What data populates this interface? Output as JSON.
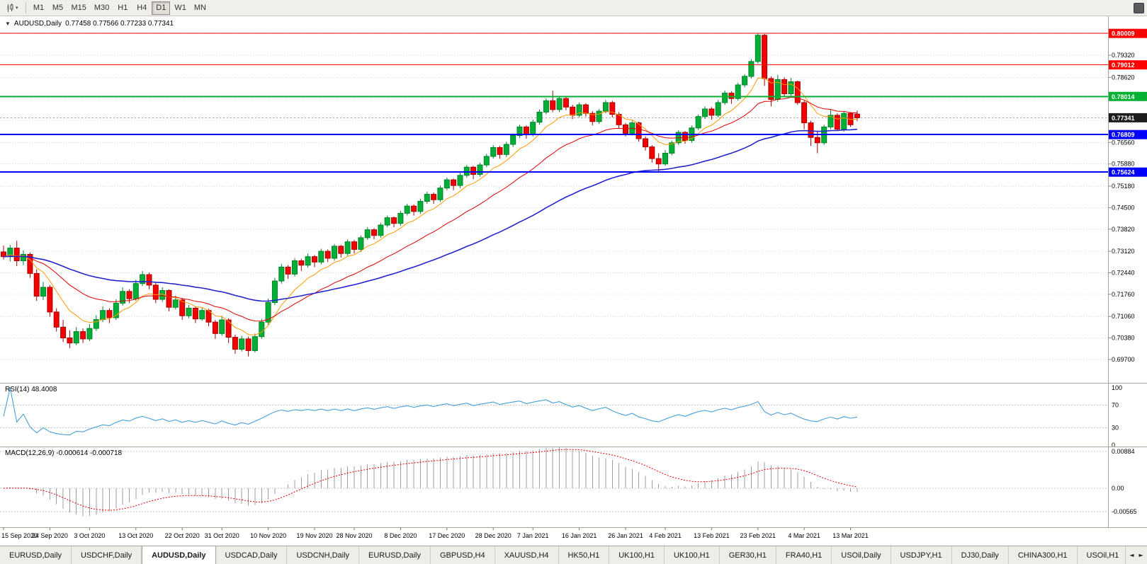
{
  "icons": {
    "caret_down": "▾",
    "tabs_scroll_left": "◄",
    "tabs_scroll_right": "►"
  },
  "toolbar": {
    "timeframes": [
      "M1",
      "M5",
      "M15",
      "M30",
      "H1",
      "H4",
      "D1",
      "W1",
      "MN"
    ],
    "active_timeframe": "D1"
  },
  "main_chart": {
    "title_marker": "▼",
    "title": "AUDUSD,Daily",
    "ohlc": "0.77458 0.77566 0.77233 0.77341",
    "colors": {
      "grid": "#D8D8D8",
      "bull": "#00B036",
      "bull_border": "#00822A",
      "bear": "#F40000",
      "bear_border": "#A60000",
      "current_tag": "#1C1C1C"
    }
  },
  "rsi_panel": {
    "label": "RSI(14) 48.4008",
    "levels": [
      100,
      70,
      30,
      0
    ],
    "line_color": "#47A0DB"
  },
  "macd_panel": {
    "label": "MACD(12,26,9) -0.000614 -0.000718",
    "histogram_color": "#9C9C9C",
    "signal_color": "#E00000"
  },
  "tabs": {
    "active_index": 2,
    "items": [
      "EURUSD,Daily",
      "USDCHF,Daily",
      "AUDUSD,Daily",
      "USDCAD,Daily",
      "USDCNH,Daily",
      "EURUSD,Daily",
      "GBPUSD,H4",
      "XAUUSD,H4",
      "HK50,H1",
      "UK100,H1",
      "UK100,H1",
      "GER30,H1",
      "FRA40,H1",
      "USOil,Daily",
      "USDJPY,H1",
      "DJ30,Daily",
      "CHINA300,H1",
      "USOil,H1"
    ]
  },
  "chart_data": {
    "type": "candlestick",
    "symbol": "AUDUSD",
    "timeframe": "Daily",
    "current_price": 0.77341,
    "current_price_label": "0.77341",
    "price_axis": {
      "min": 0.6896,
      "max": 0.8055,
      "gridlines": [
        {
          "price": 0.8,
          "label": ""
        },
        {
          "price": 0.7932,
          "label": "0.79320"
        },
        {
          "price": 0.7862,
          "label": "0.78620"
        },
        {
          "price": 0.7794,
          "label": ""
        },
        {
          "price": 0.7726,
          "label": ""
        },
        {
          "price": 0.7656,
          "label": "0.76560"
        },
        {
          "price": 0.7588,
          "label": "0.75880"
        },
        {
          "price": 0.7518,
          "label": "0.75180"
        },
        {
          "price": 0.745,
          "label": "0.74500"
        },
        {
          "price": 0.7382,
          "label": "0.73820"
        },
        {
          "price": 0.7312,
          "label": "0.73120"
        },
        {
          "price": 0.7244,
          "label": "0.72440"
        },
        {
          "price": 0.7176,
          "label": "0.71760"
        },
        {
          "price": 0.7106,
          "label": "0.71060"
        },
        {
          "price": 0.7038,
          "label": "0.70380"
        },
        {
          "price": 0.697,
          "label": "0.69700"
        }
      ]
    },
    "horizontal_levels": [
      {
        "price": 0.80009,
        "label": "0.80009",
        "color": "#FF0000",
        "width": 1
      },
      {
        "price": 0.79012,
        "label": "0.79012",
        "color": "#FF0000",
        "width": 1
      },
      {
        "price": 0.78014,
        "label": "0.78014",
        "color": "#00B232",
        "width": 2
      },
      {
        "price": 0.76809,
        "label": "0.76809",
        "color": "#0000FF",
        "width": 2
      },
      {
        "price": 0.75624,
        "label": "0.75624",
        "color": "#0000FF",
        "width": 2
      }
    ],
    "moving_averages": [
      {
        "name": "fast",
        "type": "ema",
        "period": 8,
        "color": "#FF9900",
        "width": 1
      },
      {
        "name": "mid",
        "type": "ema",
        "period": 21,
        "color": "#E00000",
        "width": 1
      },
      {
        "name": "slow",
        "type": "ema",
        "period": 55,
        "color": "#2424CC",
        "width": 1.6
      }
    ],
    "rsi": {
      "period": 14,
      "value": 48.4008
    },
    "macd": {
      "fast": 12,
      "slow": 26,
      "signal": 9,
      "macd_value": -0.000614,
      "signal_value": -0.000718,
      "axis": [
        {
          "value": 0.00884,
          "label": "0.00884"
        },
        {
          "value": 0,
          "label": "0.00"
        },
        {
          "value": -0.00565,
          "label": "-0.00565"
        }
      ]
    },
    "date_labels": [
      {
        "text": "15 Sep 2020",
        "index": 0
      },
      {
        "text": "24 Sep 2020",
        "index": 7
      },
      {
        "text": "3 Oct 2020",
        "index": 13
      },
      {
        "text": "13 Oct 2020",
        "index": 20
      },
      {
        "text": "22 Oct 2020",
        "index": 27
      },
      {
        "text": "31 Oct 2020",
        "index": 33
      },
      {
        "text": "10 Nov 2020",
        "index": 40
      },
      {
        "text": "19 Nov 2020",
        "index": 47
      },
      {
        "text": "28 Nov 2020",
        "index": 53
      },
      {
        "text": "8 Dec 2020",
        "index": 60
      },
      {
        "text": "17 Dec 2020",
        "index": 67
      },
      {
        "text": "28 Dec 2020",
        "index": 74
      },
      {
        "text": "7 Jan 2021",
        "index": 80
      },
      {
        "text": "16 Jan 2021",
        "index": 87
      },
      {
        "text": "26 Jan 2021",
        "index": 94
      },
      {
        "text": "4 Feb 2021",
        "index": 100
      },
      {
        "text": "13 Feb 2021",
        "index": 107
      },
      {
        "text": "23 Feb 2021",
        "index": 114
      },
      {
        "text": "4 Mar 2021",
        "index": 121
      },
      {
        "text": "13 Mar 2021",
        "index": 128
      }
    ],
    "candles": [
      [
        0.731,
        0.733,
        0.7286,
        0.7295
      ],
      [
        0.7295,
        0.7332,
        0.728,
        0.7322
      ],
      [
        0.7322,
        0.7345,
        0.7265,
        0.7282
      ],
      [
        0.7282,
        0.7315,
        0.7268,
        0.7302
      ],
      [
        0.7302,
        0.7308,
        0.7228,
        0.7242
      ],
      [
        0.7242,
        0.7255,
        0.7155,
        0.717
      ],
      [
        0.717,
        0.7215,
        0.7158,
        0.7198
      ],
      [
        0.7198,
        0.7205,
        0.7105,
        0.712
      ],
      [
        0.712,
        0.7132,
        0.7058,
        0.7072
      ],
      [
        0.7072,
        0.7095,
        0.7025,
        0.7038
      ],
      [
        0.7038,
        0.7062,
        0.7006,
        0.7022
      ],
      [
        0.7022,
        0.7072,
        0.7015,
        0.7058
      ],
      [
        0.7058,
        0.7068,
        0.7022,
        0.7035
      ],
      [
        0.7035,
        0.7082,
        0.7028,
        0.7068
      ],
      [
        0.7068,
        0.711,
        0.706,
        0.7096
      ],
      [
        0.7096,
        0.7138,
        0.7088,
        0.7125
      ],
      [
        0.7125,
        0.7132,
        0.7085,
        0.7102
      ],
      [
        0.7102,
        0.716,
        0.7095,
        0.7148
      ],
      [
        0.7148,
        0.7198,
        0.714,
        0.7185
      ],
      [
        0.7185,
        0.7192,
        0.7148,
        0.7162
      ],
      [
        0.7162,
        0.7222,
        0.7155,
        0.721
      ],
      [
        0.721,
        0.725,
        0.7202,
        0.7238
      ],
      [
        0.7238,
        0.7245,
        0.7192,
        0.7205
      ],
      [
        0.7205,
        0.7212,
        0.7148,
        0.716
      ],
      [
        0.716,
        0.7198,
        0.7152,
        0.7188
      ],
      [
        0.7188,
        0.7192,
        0.7122,
        0.7135
      ],
      [
        0.7135,
        0.7172,
        0.7128,
        0.7158
      ],
      [
        0.7158,
        0.7165,
        0.7095,
        0.7108
      ],
      [
        0.7108,
        0.7142,
        0.71,
        0.7132
      ],
      [
        0.7132,
        0.7138,
        0.7085,
        0.7098
      ],
      [
        0.7098,
        0.7135,
        0.7092,
        0.7125
      ],
      [
        0.7125,
        0.713,
        0.7075,
        0.7088
      ],
      [
        0.7088,
        0.7095,
        0.7035,
        0.7052
      ],
      [
        0.7052,
        0.7108,
        0.7045,
        0.7095
      ],
      [
        0.7095,
        0.71,
        0.7022,
        0.704
      ],
      [
        0.704,
        0.7048,
        0.6988,
        0.7002
      ],
      [
        0.7002,
        0.7045,
        0.6995,
        0.7035
      ],
      [
        0.7035,
        0.7042,
        0.698,
        0.6998
      ],
      [
        0.6998,
        0.7052,
        0.6992,
        0.7042
      ],
      [
        0.7042,
        0.7098,
        0.7035,
        0.7088
      ],
      [
        0.7088,
        0.7162,
        0.708,
        0.715
      ],
      [
        0.715,
        0.7228,
        0.7142,
        0.7218
      ],
      [
        0.7218,
        0.7272,
        0.721,
        0.7262
      ],
      [
        0.7262,
        0.7268,
        0.7225,
        0.724
      ],
      [
        0.724,
        0.729,
        0.7232,
        0.7282
      ],
      [
        0.7282,
        0.7288,
        0.725,
        0.7268
      ],
      [
        0.7268,
        0.7305,
        0.726,
        0.7295
      ],
      [
        0.7295,
        0.73,
        0.7262,
        0.7278
      ],
      [
        0.7278,
        0.732,
        0.727,
        0.7312
      ],
      [
        0.7312,
        0.7318,
        0.7278,
        0.729
      ],
      [
        0.729,
        0.7335,
        0.7282,
        0.7328
      ],
      [
        0.7328,
        0.7332,
        0.7292,
        0.7305
      ],
      [
        0.7305,
        0.735,
        0.7298,
        0.7342
      ],
      [
        0.7342,
        0.7348,
        0.7305,
        0.7318
      ],
      [
        0.7318,
        0.7362,
        0.731,
        0.7355
      ],
      [
        0.7355,
        0.7388,
        0.7348,
        0.738
      ],
      [
        0.738,
        0.7385,
        0.735,
        0.7362
      ],
      [
        0.7362,
        0.7402,
        0.7355,
        0.7395
      ],
      [
        0.7395,
        0.7425,
        0.7388,
        0.7418
      ],
      [
        0.7418,
        0.7422,
        0.7388,
        0.74
      ],
      [
        0.74,
        0.744,
        0.7392,
        0.7432
      ],
      [
        0.7432,
        0.7462,
        0.7425,
        0.7455
      ],
      [
        0.7455,
        0.746,
        0.7425,
        0.7438
      ],
      [
        0.7438,
        0.7478,
        0.743,
        0.747
      ],
      [
        0.747,
        0.75,
        0.7462,
        0.7492
      ],
      [
        0.7492,
        0.7498,
        0.7462,
        0.7475
      ],
      [
        0.7475,
        0.752,
        0.7468,
        0.7512
      ],
      [
        0.7512,
        0.7545,
        0.7505,
        0.7538
      ],
      [
        0.7538,
        0.7542,
        0.7505,
        0.752
      ],
      [
        0.752,
        0.756,
        0.7512,
        0.7552
      ],
      [
        0.7552,
        0.7585,
        0.7545,
        0.7578
      ],
      [
        0.7578,
        0.7582,
        0.754,
        0.7555
      ],
      [
        0.7555,
        0.7592,
        0.7548,
        0.7585
      ],
      [
        0.7585,
        0.762,
        0.7578,
        0.7612
      ],
      [
        0.7612,
        0.7648,
        0.7605,
        0.764
      ],
      [
        0.764,
        0.7645,
        0.7605,
        0.7618
      ],
      [
        0.7618,
        0.7658,
        0.761,
        0.765
      ],
      [
        0.765,
        0.7685,
        0.7642,
        0.7678
      ],
      [
        0.7678,
        0.7712,
        0.767,
        0.7705
      ],
      [
        0.7705,
        0.771,
        0.7668,
        0.7682
      ],
      [
        0.7682,
        0.7728,
        0.7675,
        0.772
      ],
      [
        0.772,
        0.776,
        0.7712,
        0.7752
      ],
      [
        0.7752,
        0.7795,
        0.7745,
        0.7788
      ],
      [
        0.7788,
        0.782,
        0.7752,
        0.776
      ],
      [
        0.776,
        0.78,
        0.7752,
        0.7795
      ],
      [
        0.7795,
        0.78,
        0.7758,
        0.7768
      ],
      [
        0.7768,
        0.7775,
        0.773,
        0.7742
      ],
      [
        0.7742,
        0.7782,
        0.7735,
        0.7775
      ],
      [
        0.7775,
        0.778,
        0.7738,
        0.7748
      ],
      [
        0.7748,
        0.7755,
        0.771,
        0.7722
      ],
      [
        0.7722,
        0.7762,
        0.7715,
        0.7755
      ],
      [
        0.7755,
        0.779,
        0.7748,
        0.7782
      ],
      [
        0.7782,
        0.7788,
        0.7735,
        0.7745
      ],
      [
        0.7745,
        0.7752,
        0.77,
        0.7712
      ],
      [
        0.7712,
        0.7718,
        0.7675,
        0.7685
      ],
      [
        0.7685,
        0.7725,
        0.7678,
        0.7718
      ],
      [
        0.7718,
        0.7722,
        0.7658,
        0.7668
      ],
      [
        0.7668,
        0.7675,
        0.763,
        0.7642
      ],
      [
        0.7642,
        0.7648,
        0.7592,
        0.7605
      ],
      [
        0.7605,
        0.7622,
        0.7565,
        0.7588
      ],
      [
        0.7588,
        0.7632,
        0.7582,
        0.7622
      ],
      [
        0.7622,
        0.7662,
        0.7615,
        0.7655
      ],
      [
        0.7655,
        0.7695,
        0.7648,
        0.7688
      ],
      [
        0.7688,
        0.7692,
        0.7652,
        0.7662
      ],
      [
        0.7662,
        0.771,
        0.7655,
        0.7702
      ],
      [
        0.7702,
        0.7745,
        0.7695,
        0.7738
      ],
      [
        0.7738,
        0.777,
        0.773,
        0.7762
      ],
      [
        0.7762,
        0.7768,
        0.7728,
        0.7742
      ],
      [
        0.7742,
        0.779,
        0.7735,
        0.7782
      ],
      [
        0.7782,
        0.782,
        0.7775,
        0.7812
      ],
      [
        0.7812,
        0.7818,
        0.7778,
        0.7795
      ],
      [
        0.7795,
        0.7845,
        0.7788,
        0.7838
      ],
      [
        0.7838,
        0.7872,
        0.783,
        0.7865
      ],
      [
        0.7865,
        0.792,
        0.7858,
        0.7912
      ],
      [
        0.7912,
        0.80009,
        0.7905,
        0.7995
      ],
      [
        0.7995,
        0.7999,
        0.7835,
        0.7858
      ],
      [
        0.7858,
        0.7865,
        0.777,
        0.7792
      ],
      [
        0.7792,
        0.787,
        0.7785,
        0.7855
      ],
      [
        0.7855,
        0.7862,
        0.78,
        0.781
      ],
      [
        0.781,
        0.786,
        0.7802,
        0.7848
      ],
      [
        0.7848,
        0.7852,
        0.7775,
        0.7782
      ],
      [
        0.7782,
        0.7788,
        0.7698,
        0.7718
      ],
      [
        0.7718,
        0.7725,
        0.7645,
        0.7672
      ],
      [
        0.7672,
        0.769,
        0.7622,
        0.7655
      ],
      [
        0.7655,
        0.7712,
        0.7648,
        0.7705
      ],
      [
        0.7705,
        0.776,
        0.7698,
        0.7742
      ],
      [
        0.7742,
        0.7748,
        0.7692,
        0.7698
      ],
      [
        0.7698,
        0.7755,
        0.769,
        0.7748
      ],
      [
        0.7748,
        0.7752,
        0.7705,
        0.7712
      ],
      [
        0.77458,
        0.77566,
        0.77233,
        0.77341
      ]
    ]
  }
}
